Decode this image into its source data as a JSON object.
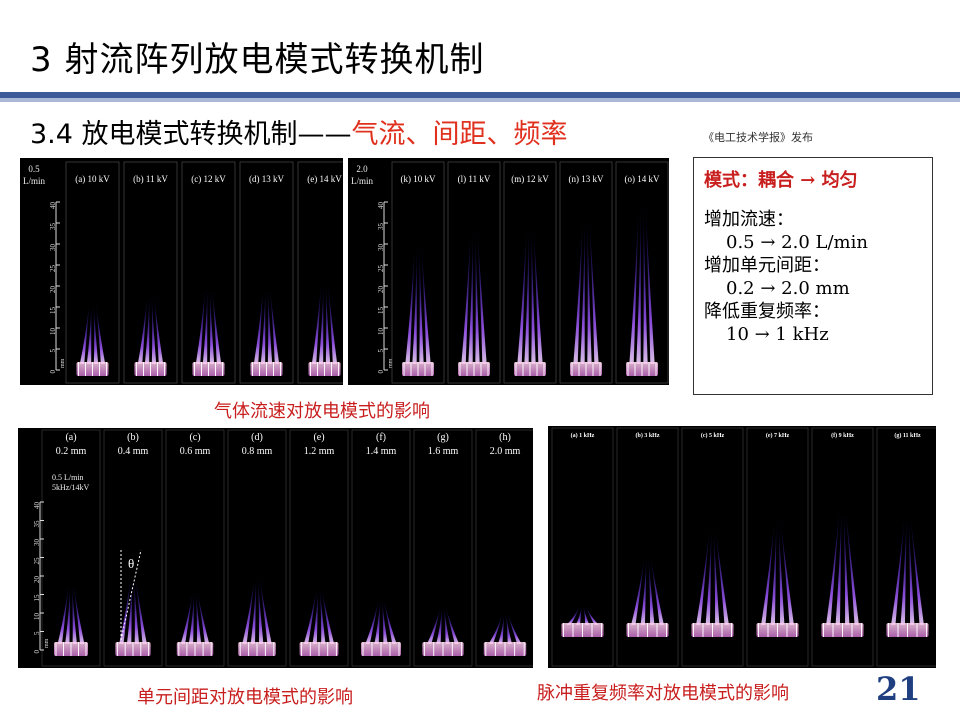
{
  "slide": {
    "title": "3  射流阵列放电模式转换机制",
    "subtitle_main": "3.4  放电模式转换机制——",
    "subtitle_red": "气流、间距、频率",
    "journal_note": "《电工技术学报》发布",
    "page_number": "21",
    "accent_color": "#3b5a9a",
    "highlight_color": "#e0301e"
  },
  "info_box": {
    "mode_line": "模式：耦合 → 均匀",
    "items": [
      {
        "label": "增加流速：",
        "value": "0.5 → 2.0 L/min"
      },
      {
        "label": "增加单元间距：",
        "value": "0.2 → 2.0 mm"
      },
      {
        "label": "降低重复频率：",
        "value": "10 → 1 kHz"
      }
    ]
  },
  "captions": {
    "flow": "气体流速对放电模式的影响",
    "spacing": "单元间距对放电模式的影响",
    "frequency": "脉冲重复频率对放电模式的影响"
  },
  "chart_data": [
    {
      "type": "image_series",
      "panel": "flow-0.5",
      "condition": [
        "0.5",
        "L/min"
      ],
      "axis_ticks": [
        "0",
        "5",
        "10",
        "15",
        "20",
        "25",
        "30",
        "35",
        "40"
      ],
      "axis_unit": "mm",
      "labels": [
        "(a) 10 kV",
        "(b) 11 kV",
        "(c) 12 kV",
        "(d) 13 kV",
        "(e) 14 kV"
      ],
      "plume_height_mm": [
        16,
        18,
        20,
        20,
        21
      ]
    },
    {
      "type": "image_series",
      "panel": "flow-2.0",
      "condition": [
        "2.0",
        "L/min"
      ],
      "axis_ticks": [
        "0",
        "5",
        "10",
        "15",
        "20",
        "25",
        "30",
        "35",
        "40"
      ],
      "axis_unit": "mm",
      "labels": [
        "(k) 10 kV",
        "(l) 11 kV",
        "(m) 12 kV",
        "(n) 13 kV",
        "(o) 14 kV"
      ],
      "plume_height_mm": [
        30,
        34,
        35,
        37,
        40
      ]
    },
    {
      "type": "image_series",
      "panel": "spacing",
      "condition": [
        "0.5 L/min",
        "5kHz/14kV"
      ],
      "axis_ticks": [
        "0",
        "5",
        "10",
        "15",
        "20",
        "25",
        "30",
        "35",
        "40"
      ],
      "axis_unit": "mm",
      "angle_label": "θ",
      "labels": [
        "(a)",
        "(b)",
        "(c)",
        "(d)",
        "(e)",
        "(f)",
        "(g)",
        "(h)"
      ],
      "values": [
        "0.2 mm",
        "0.4 mm",
        "0.6 mm",
        "0.8 mm",
        "1.2 mm",
        "1.4 mm",
        "1.6 mm",
        "2.0 mm"
      ],
      "plume_height_mm": [
        18,
        20,
        16,
        20,
        17,
        14,
        12,
        10
      ]
    },
    {
      "type": "image_series",
      "panel": "frequency",
      "labels": [
        "(a) 1 kHz",
        "(b) 3 kHz",
        "(c) 5 kHz",
        "(e) 7 kHz",
        "(f) 9 kHz",
        "(g) 11 kHz"
      ],
      "plume_height_mm": [
        6,
        18,
        25,
        27,
        30,
        28
      ]
    }
  ]
}
